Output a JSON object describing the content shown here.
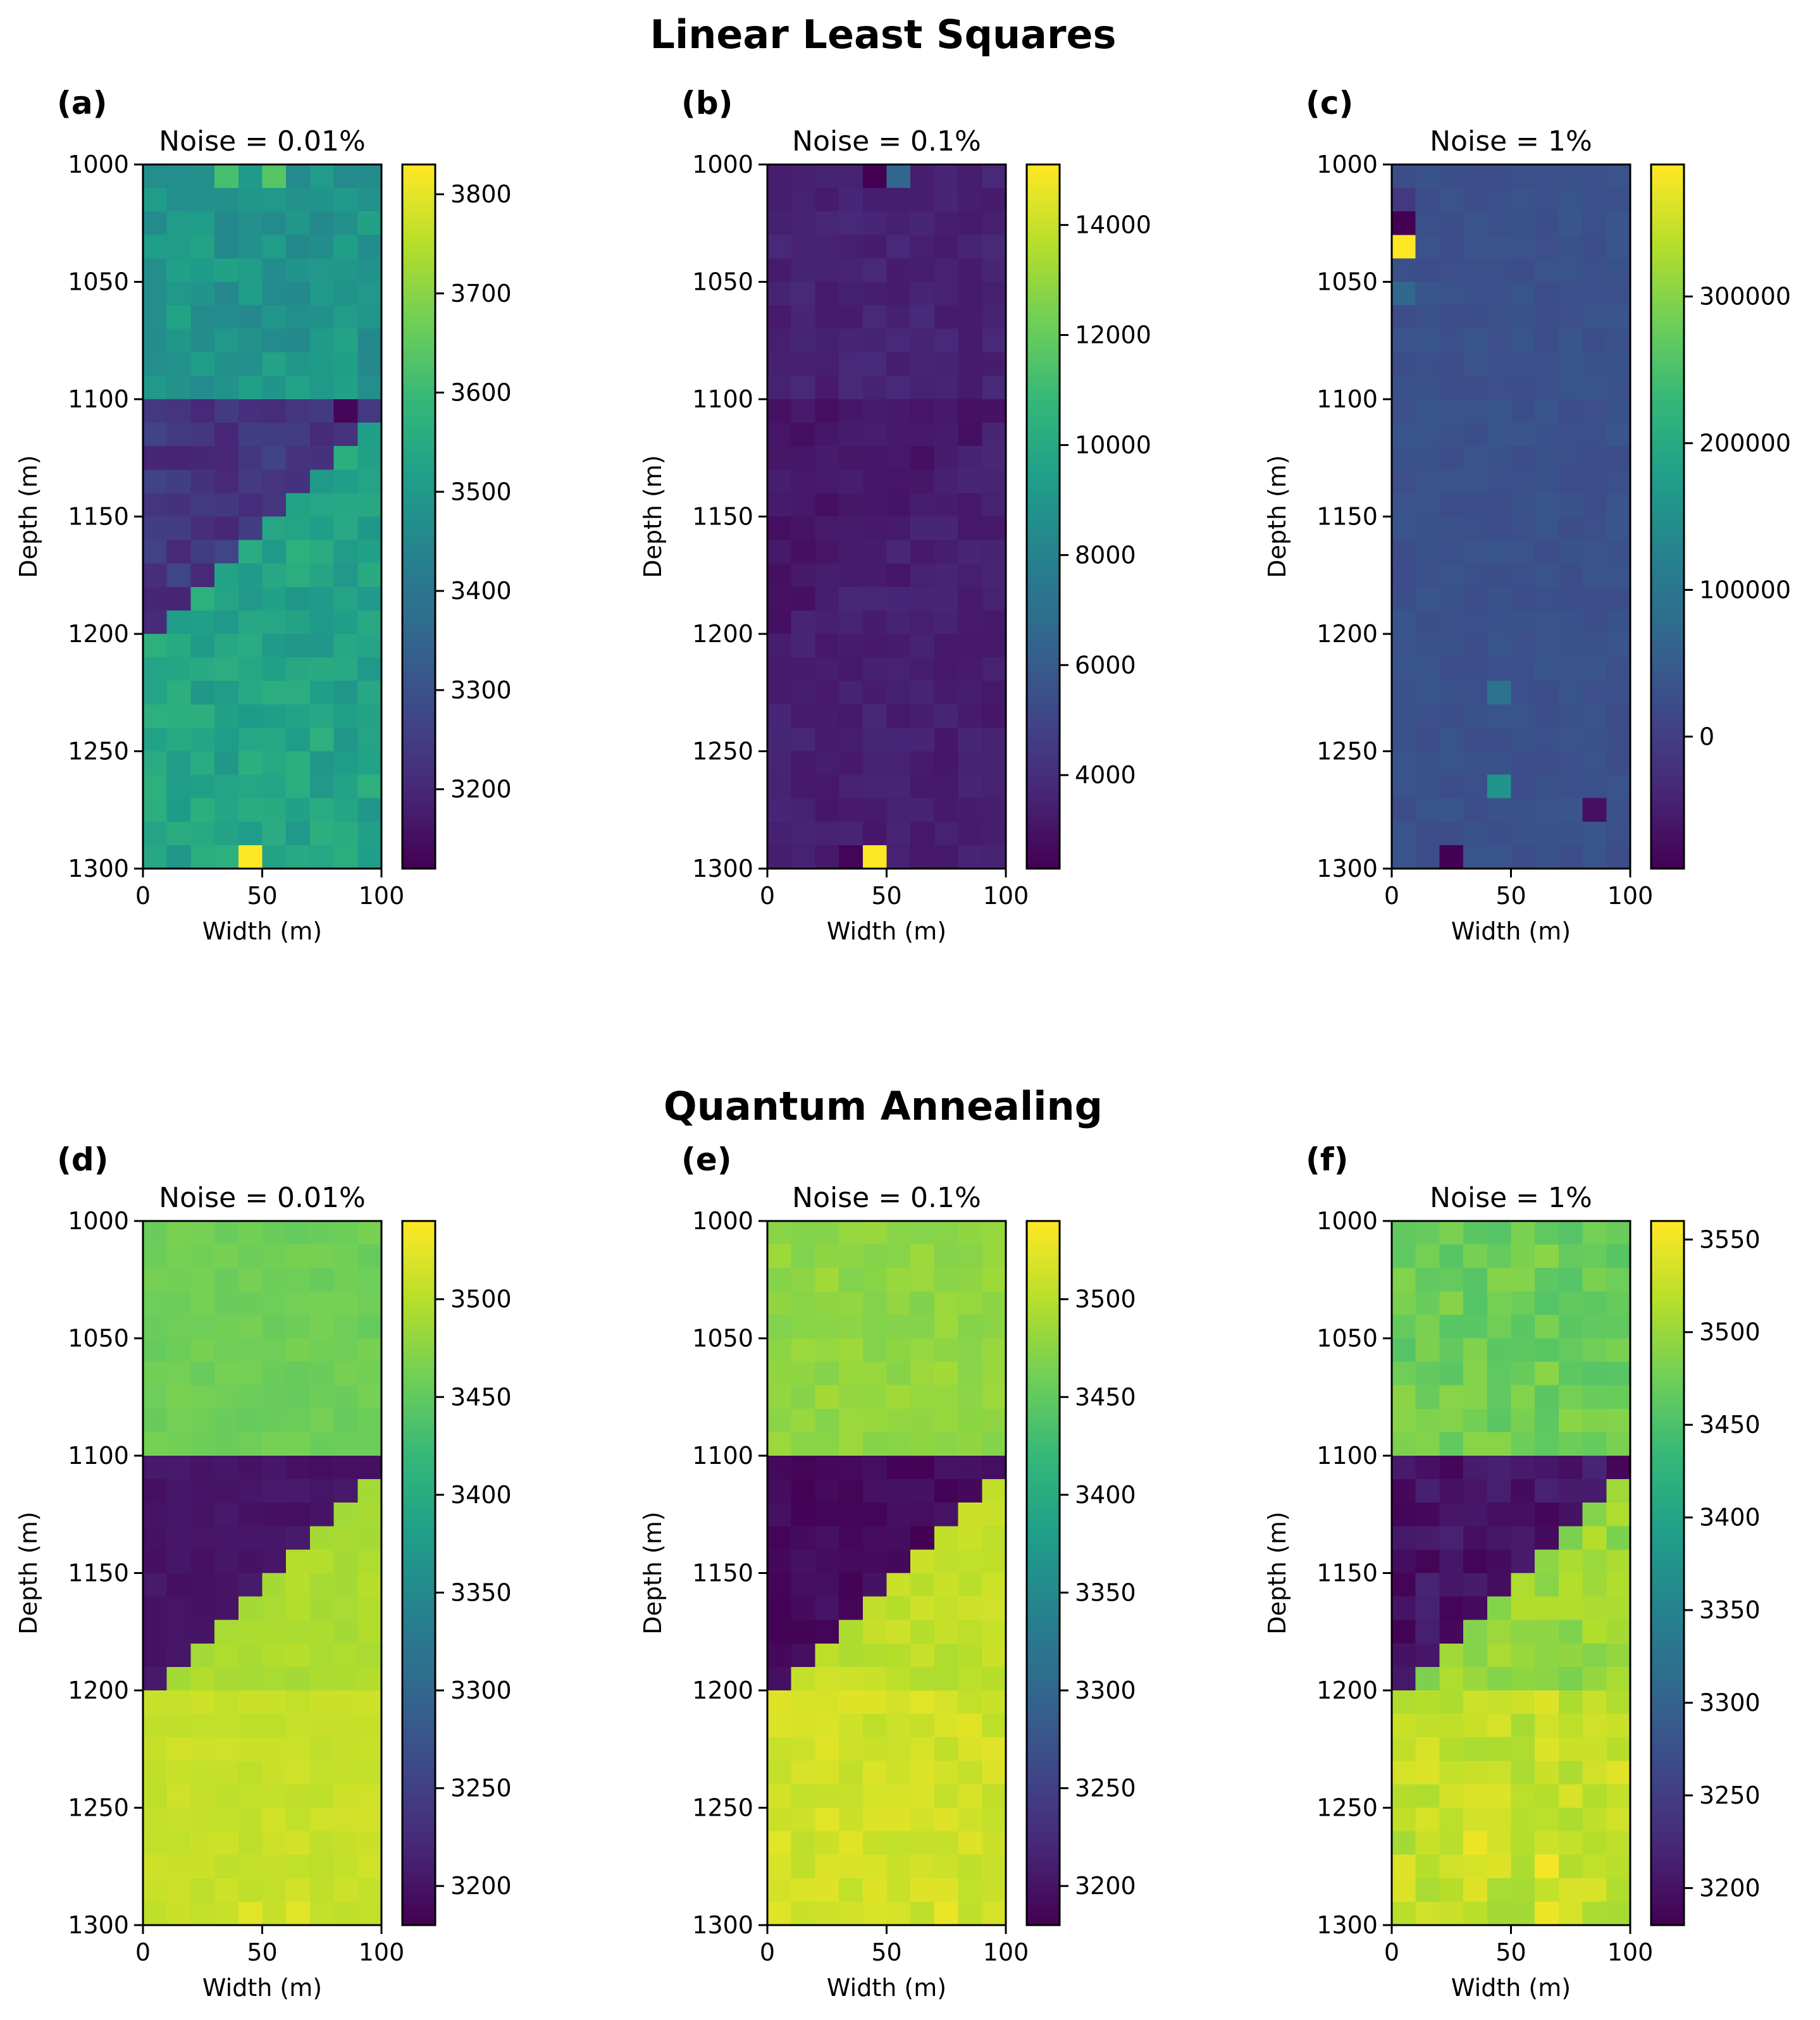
{
  "figure": {
    "section_titles": [
      "Linear Least Squares",
      "Quantum Annealing"
    ]
  },
  "colormap": [
    "#440154",
    "#482878",
    "#3e4989",
    "#31688e",
    "#26828e",
    "#1f9e89",
    "#35b779",
    "#6ece58",
    "#b5de2b",
    "#fde725"
  ],
  "chart_data": [
    {
      "type": "heatmap",
      "label": "(a)",
      "title": "Noise = 0.01%",
      "xlabel": "Width (m)",
      "ylabel": "Depth (m)",
      "xlim": [
        0,
        100
      ],
      "ylim": [
        1000,
        1300
      ],
      "y_inverted": true,
      "xticks": [
        0,
        50,
        100
      ],
      "yticks": [
        1000,
        1050,
        1100,
        1150,
        1200,
        1250,
        1300
      ],
      "clim": [
        3120,
        3830
      ],
      "cbar_ticks": [
        3200,
        3300,
        3400,
        3500,
        3600,
        3700,
        3800
      ],
      "model": {
        "top_value": 3490,
        "bottom_value": 3530,
        "wedge_value": 3230,
        "base_value": 3530,
        "noise_amplitude": 40,
        "seed": 11
      },
      "grid": [
        10,
        30
      ],
      "hotspots": [
        {
          "col": 4,
          "row": 29,
          "value": 3830
        },
        {
          "col": 8,
          "row": 10,
          "value": 3130
        },
        {
          "col": 3,
          "row": 0,
          "value": 3620
        },
        {
          "col": 5,
          "row": 0,
          "value": 3640
        }
      ]
    },
    {
      "type": "heatmap",
      "label": "(b)",
      "title": "Noise = 0.1%",
      "xlabel": "Width (m)",
      "ylabel": "Depth (m)",
      "xlim": [
        0,
        100
      ],
      "ylim": [
        1000,
        1300
      ],
      "y_inverted": true,
      "xticks": [
        0,
        50,
        100
      ],
      "yticks": [
        1000,
        1050,
        1100,
        1150,
        1200,
        1250,
        1300
      ],
      "clim": [
        2300,
        15100
      ],
      "cbar_ticks": [
        4000,
        6000,
        8000,
        10000,
        12000,
        14000
      ],
      "model": {
        "top_value": 3500,
        "bottom_value": 3400,
        "wedge_value": 3100,
        "base_value": 3400,
        "noise_amplitude": 300,
        "seed": 23
      },
      "grid": [
        10,
        30
      ],
      "hotspots": [
        {
          "col": 4,
          "row": 29,
          "value": 15100
        },
        {
          "col": 5,
          "row": 0,
          "value": 6500
        },
        {
          "col": 4,
          "row": 0,
          "value": 2300
        },
        {
          "col": 3,
          "row": 29,
          "value": 2400
        }
      ]
    },
    {
      "type": "heatmap",
      "label": "(c)",
      "title": "Noise = 1%",
      "xlabel": "Width (m)",
      "ylabel": "Depth (m)",
      "xlim": [
        0,
        100
      ],
      "ylim": [
        1000,
        1300
      ],
      "y_inverted": true,
      "xticks": [
        0,
        50,
        100
      ],
      "yticks": [
        1000,
        1050,
        1100,
        1150,
        1200,
        1250,
        1300
      ],
      "clim": [
        -90000,
        390000
      ],
      "cbar_ticks": [
        0,
        100000,
        200000,
        300000
      ],
      "model": {
        "top_value": 30000,
        "bottom_value": 30000,
        "wedge_value": 30000,
        "base_value": 30000,
        "noise_amplitude": 8000,
        "seed": 37
      },
      "grid": [
        10,
        30
      ],
      "hotspots": [
        {
          "col": 0,
          "row": 3,
          "value": 390000
        },
        {
          "col": 0,
          "row": 2,
          "value": -90000
        },
        {
          "col": 0,
          "row": 1,
          "value": -10000
        },
        {
          "col": 4,
          "row": 26,
          "value": 160000
        },
        {
          "col": 4,
          "row": 22,
          "value": 90000
        },
        {
          "col": 2,
          "row": 29,
          "value": -90000
        },
        {
          "col": 8,
          "row": 27,
          "value": -70000
        },
        {
          "col": 0,
          "row": 5,
          "value": 70000
        }
      ]
    },
    {
      "type": "heatmap",
      "label": "(d)",
      "title": "Noise = 0.01%",
      "xlabel": "Width (m)",
      "ylabel": "Depth (m)",
      "xlim": [
        0,
        100
      ],
      "ylim": [
        1000,
        1300
      ],
      "y_inverted": true,
      "xticks": [
        0,
        50,
        100
      ],
      "yticks": [
        1000,
        1050,
        1100,
        1150,
        1200,
        1250,
        1300
      ],
      "clim": [
        3180,
        3540
      ],
      "cbar_ticks": [
        3200,
        3250,
        3300,
        3350,
        3400,
        3450,
        3500
      ],
      "model": {
        "top_value": 3460,
        "bottom_value": 3510,
        "wedge_value": 3200,
        "base_value": 3495,
        "noise_amplitude": 6,
        "seed": 41
      },
      "grid": [
        10,
        30
      ],
      "hotspots": [
        {
          "col": 4,
          "row": 29,
          "value": 3525
        },
        {
          "col": 6,
          "row": 29,
          "value": 3525
        }
      ]
    },
    {
      "type": "heatmap",
      "label": "(e)",
      "title": "Noise = 0.1%",
      "xlabel": "Width (m)",
      "ylabel": "Depth (m)",
      "xlim": [
        0,
        100
      ],
      "ylim": [
        1000,
        1300
      ],
      "y_inverted": true,
      "xticks": [
        0,
        50,
        100
      ],
      "yticks": [
        1000,
        1050,
        1100,
        1150,
        1200,
        1250,
        1300
      ],
      "clim": [
        3180,
        3540
      ],
      "cbar_ticks": [
        3200,
        3250,
        3300,
        3350,
        3400,
        3450,
        3500
      ],
      "model": {
        "top_value": 3480,
        "bottom_value": 3515,
        "wedge_value": 3190,
        "base_value": 3505,
        "noise_amplitude": 10,
        "seed": 53
      },
      "grid": [
        10,
        30
      ],
      "hotspots": [
        {
          "col": 7,
          "row": 29,
          "value": 3530
        }
      ]
    },
    {
      "type": "heatmap",
      "label": "(f)",
      "title": "Noise = 1%",
      "xlabel": "Width (m)",
      "ylabel": "Depth (m)",
      "xlim": [
        0,
        100
      ],
      "ylim": [
        1000,
        1300
      ],
      "y_inverted": true,
      "xticks": [
        0,
        50,
        100
      ],
      "yticks": [
        1000,
        1050,
        1100,
        1150,
        1200,
        1250,
        1300
      ],
      "clim": [
        3180,
        3560
      ],
      "cbar_ticks": [
        3200,
        3250,
        3300,
        3350,
        3400,
        3450,
        3500,
        3550
      ],
      "model": {
        "top_value": 3475,
        "bottom_value": 3525,
        "wedge_value": 3200,
        "base_value": 3500,
        "noise_amplitude": 18,
        "seed": 67
      },
      "grid": [
        10,
        30
      ],
      "hotspots": [
        {
          "col": 6,
          "row": 27,
          "value": 3555
        },
        {
          "col": 3,
          "row": 26,
          "value": 3550
        },
        {
          "col": 6,
          "row": 29,
          "value": 3550
        }
      ]
    }
  ]
}
